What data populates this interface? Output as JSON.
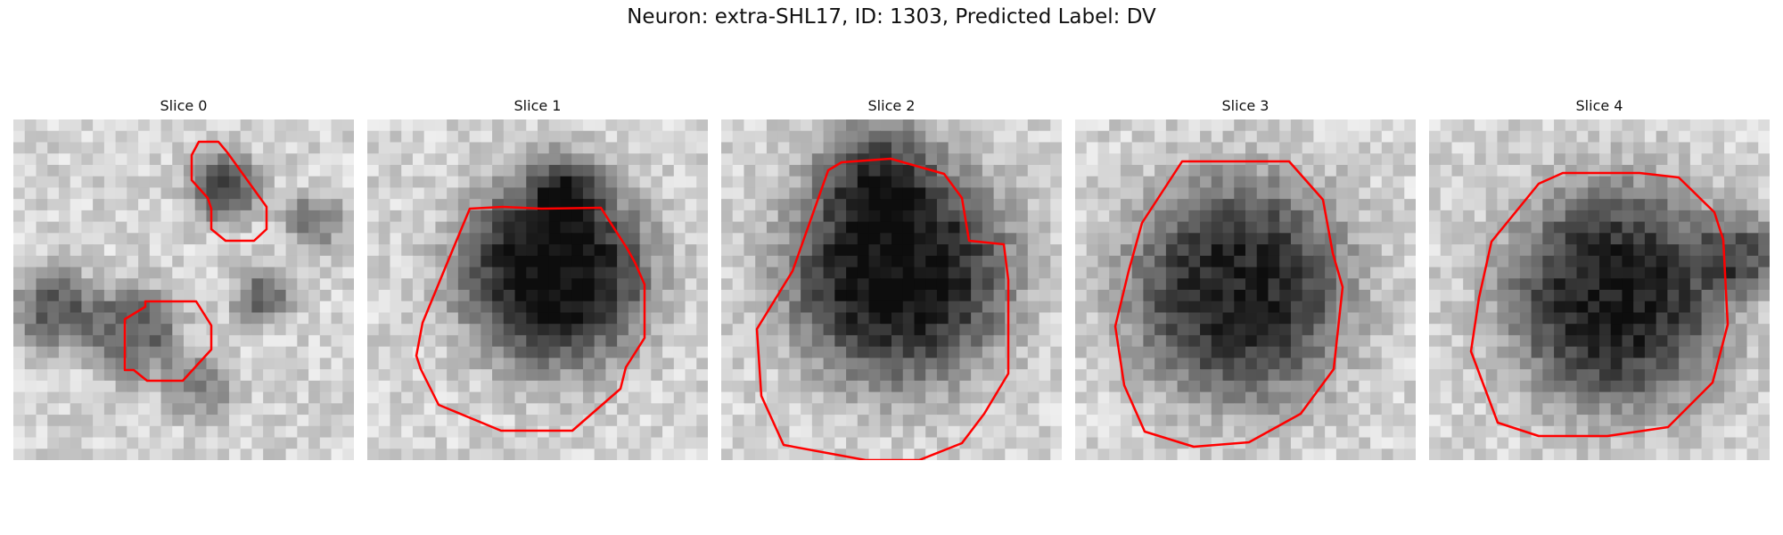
{
  "figure": {
    "title": "Neuron: extra-SHL17, ID: 1303, Predicted Label: DV"
  },
  "slices": [
    {
      "label": "Slice 0"
    },
    {
      "label": "Slice 1"
    },
    {
      "label": "Slice 2"
    },
    {
      "label": "Slice 3"
    },
    {
      "label": "Slice 4"
    }
  ],
  "colors": {
    "contour": "#ff0000",
    "background": "#ffffff"
  },
  "colormap": "gray"
}
